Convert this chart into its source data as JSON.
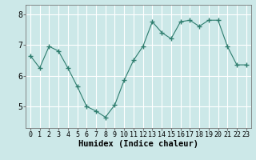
{
  "x": [
    0,
    1,
    2,
    3,
    4,
    5,
    6,
    7,
    8,
    9,
    10,
    11,
    12,
    13,
    14,
    15,
    16,
    17,
    18,
    19,
    20,
    21,
    22,
    23
  ],
  "y": [
    6.65,
    6.25,
    6.95,
    6.8,
    6.25,
    5.65,
    5.0,
    4.85,
    4.65,
    5.05,
    5.85,
    6.5,
    6.95,
    7.75,
    7.4,
    7.2,
    7.75,
    7.8,
    7.6,
    7.8,
    7.8,
    6.95,
    6.35,
    6.35
  ],
  "xlabel": "Humidex (Indice chaleur)",
  "yticks": [
    5,
    6,
    7,
    8
  ],
  "xticks": [
    0,
    1,
    2,
    3,
    4,
    5,
    6,
    7,
    8,
    9,
    10,
    11,
    12,
    13,
    14,
    15,
    16,
    17,
    18,
    19,
    20,
    21,
    22,
    23
  ],
  "ylim": [
    4.3,
    8.3
  ],
  "xlim": [
    -0.5,
    23.5
  ],
  "line_color": "#2e7d6e",
  "marker": "+",
  "bg_color": "#cce8e8",
  "grid_color": "#ffffff",
  "tick_label_fontsize": 6,
  "xlabel_fontsize": 7.5
}
